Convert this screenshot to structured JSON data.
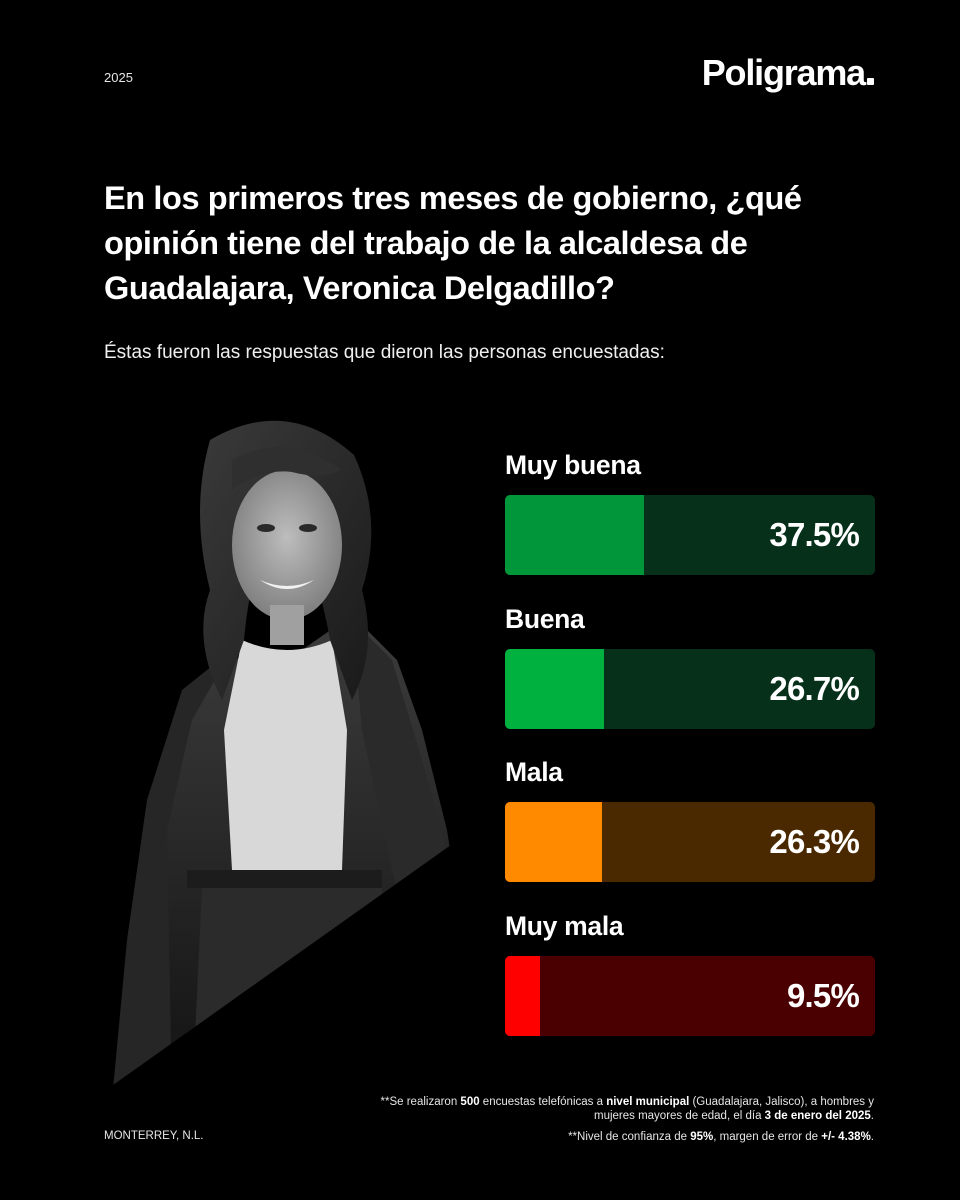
{
  "header": {
    "year": "2025",
    "brand": "Poligrama"
  },
  "question": "En los primeros tres meses de gobierno, ¿qué opinión tiene del trabajo de la alcaldesa de Guadalajara, Veronica Delgadillo?",
  "subtitle": "Éstas fueron las respuestas que dieron las personas encuestadas:",
  "chart_data": {
    "type": "bar",
    "orientation": "horizontal",
    "categories": [
      "Muy buena",
      "Buena",
      "Mala",
      "Muy mala"
    ],
    "values": [
      37.5,
      26.7,
      26.3,
      9.5
    ],
    "value_labels": [
      "37.5%",
      "26.7%",
      "26.3%",
      "9.5%"
    ],
    "unit": "%",
    "xlim": [
      0,
      100
    ],
    "colors": {
      "fill": [
        "#009639",
        "#00b140",
        "#ff8a00",
        "#ff0000"
      ],
      "track": [
        "#06301a",
        "#06301a",
        "#4a2900",
        "#4a0000"
      ]
    }
  },
  "footer": {
    "note1": {
      "p1": "**Se realizaron ",
      "b1": "500",
      "p2": " encuestas telefónicas a ",
      "b2": "nivel municipal",
      "p3": " (Guadalajara, Jalisco), a hombres y mujeres mayores de edad, el día ",
      "b3": "3 de enero del 2025",
      "p4": "."
    },
    "note2": {
      "p1": "**Nivel de confianza de ",
      "b1": "95%",
      "p2": ", margen de error de ",
      "b2": "+/- 4.38%",
      "p3": "."
    },
    "city": "MONTERREY, N.L."
  }
}
